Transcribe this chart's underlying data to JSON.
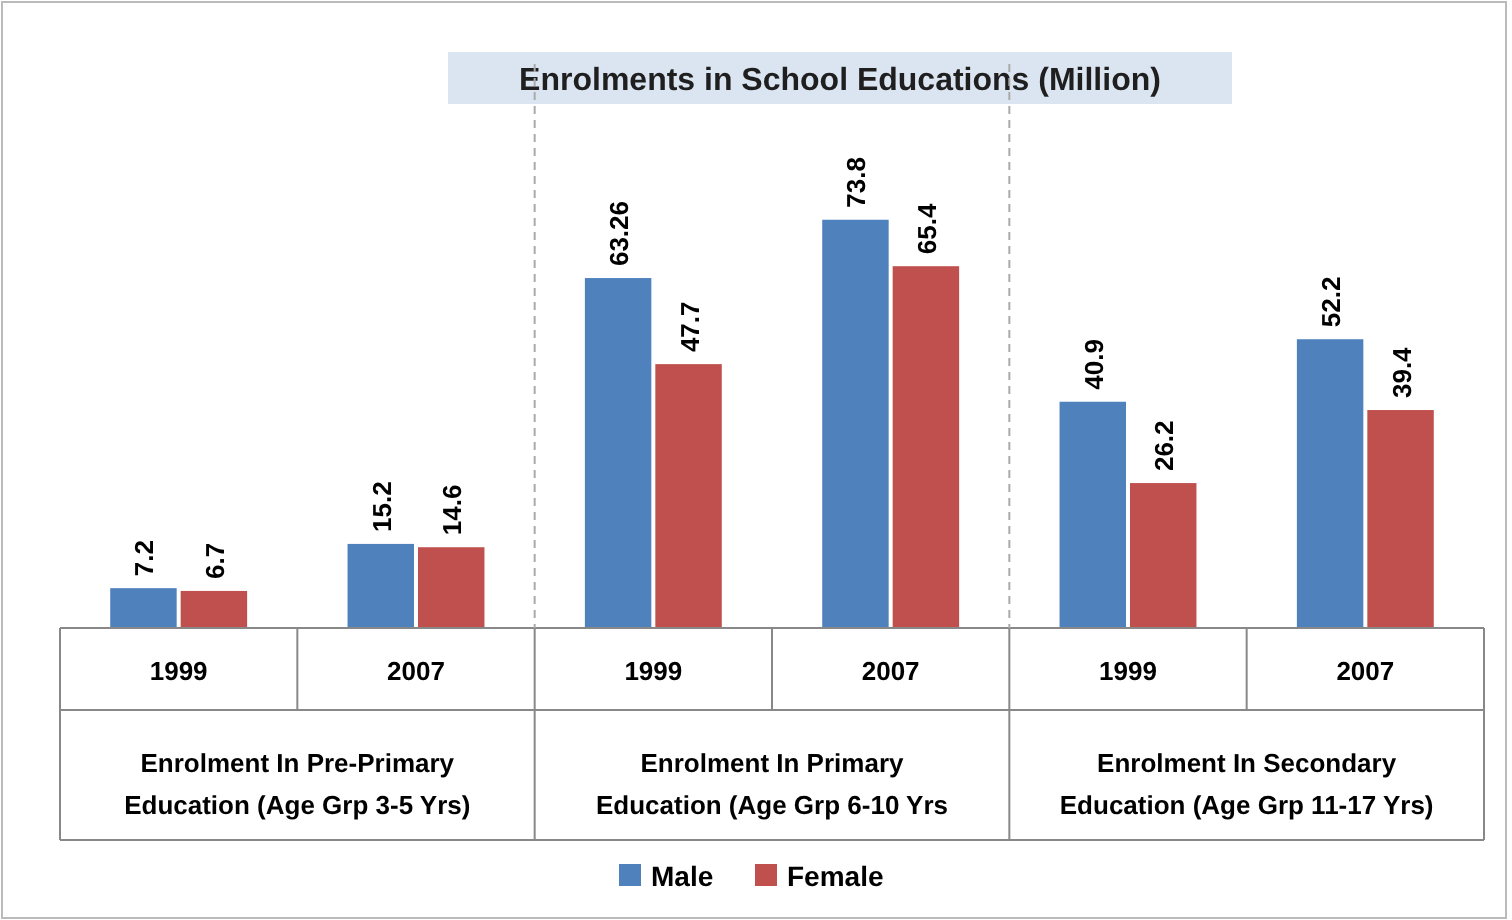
{
  "chart_data": {
    "type": "bar",
    "title": "Enrolments in School Educations (Million)",
    "categories": [
      "1999",
      "2007",
      "1999",
      "2007",
      "1999",
      "2007"
    ],
    "series": [
      {
        "name": "Male",
        "color": "#4f81bd",
        "values": [
          7.2,
          15.2,
          63.26,
          73.8,
          40.9,
          52.2
        ]
      },
      {
        "name": "Female",
        "color": "#c0504d",
        "values": [
          6.7,
          14.6,
          47.7,
          65.4,
          26.2,
          39.4
        ]
      }
    ],
    "annotations": [
      "Enrolment In Pre-Primary\nEducation (Age Grp 3-5 Yrs)",
      "Enrolment In Primary\nEducation (Age Grp 6-10 Yrs",
      "Enrolment In Secondary\nEducation (Age Grp 11-17 Yrs)"
    ],
    "data_labels": true,
    "legend": "bottom"
  }
}
